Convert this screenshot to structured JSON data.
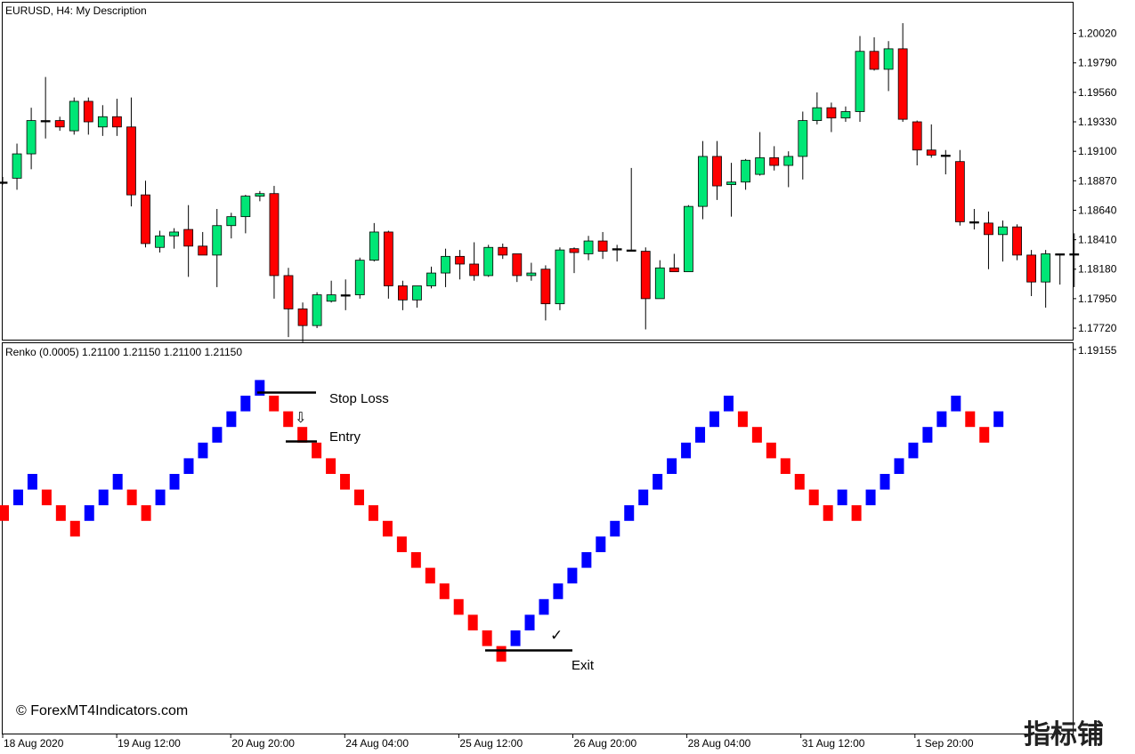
{
  "main_chart": {
    "title": "EURUSD, H4:  My Description",
    "y_ticks": [
      "1.20020",
      "1.19790",
      "1.19560",
      "1.19330",
      "1.19100",
      "1.18870",
      "1.18640",
      "1.18410",
      "1.18180",
      "1.17950",
      "1.17720"
    ]
  },
  "renko": {
    "title": "Renko (0.0005) 1.21100 1.21150 1.21100 1.21150",
    "y_tick": "1.19155"
  },
  "annotations": {
    "stop_loss": "Stop Loss",
    "entry": "Entry",
    "exit": "Exit",
    "down_arrow": "⇩",
    "check": "✓"
  },
  "x_ticks": [
    "18 Aug 2020",
    "19 Aug 12:00",
    "20 Aug 20:00",
    "24 Aug 04:00",
    "25 Aug 12:00",
    "26 Aug 20:00",
    "28 Aug 04:00",
    "31 Aug 12:00",
    "1 Sep 20:00"
  ],
  "copyright": "© ForexMT4Indicators.com",
  "watermark": "指标铺",
  "colors": {
    "bull": "#00e676",
    "bear": "#ff0000",
    "renko_up": "#0000ff",
    "renko_down": "#ff0000",
    "wick": "#000000"
  },
  "chart_data": [
    {
      "type": "candlestick",
      "title": "EURUSD, H4:  My Description",
      "ylim": [
        1.1763,
        1.2026
      ],
      "candles": [
        {
          "o": 1.1885,
          "h": 1.189,
          "l": 1.1884,
          "c": 1.1886
        },
        {
          "o": 1.1889,
          "h": 1.1916,
          "l": 1.188,
          "c": 1.1908
        },
        {
          "o": 1.1908,
          "h": 1.1944,
          "l": 1.1896,
          "c": 1.1934
        },
        {
          "o": 1.1934,
          "h": 1.1968,
          "l": 1.192,
          "c": 1.1934
        },
        {
          "o": 1.1934,
          "h": 1.1937,
          "l": 1.1926,
          "c": 1.1929
        },
        {
          "o": 1.1926,
          "h": 1.1952,
          "l": 1.1923,
          "c": 1.1949
        },
        {
          "o": 1.1949,
          "h": 1.1952,
          "l": 1.1923,
          "c": 1.1933
        },
        {
          "o": 1.1929,
          "h": 1.1946,
          "l": 1.1922,
          "c": 1.1937
        },
        {
          "o": 1.1937,
          "h": 1.1951,
          "l": 1.1922,
          "c": 1.1929
        },
        {
          "o": 1.1929,
          "h": 1.1952,
          "l": 1.1867,
          "c": 1.1876
        },
        {
          "o": 1.1876,
          "h": 1.1887,
          "l": 1.1835,
          "c": 1.1838
        },
        {
          "o": 1.1835,
          "h": 1.1848,
          "l": 1.1831,
          "c": 1.1844
        },
        {
          "o": 1.1844,
          "h": 1.185,
          "l": 1.1834,
          "c": 1.1847
        },
        {
          "o": 1.1849,
          "h": 1.1868,
          "l": 1.1812,
          "c": 1.1836
        },
        {
          "o": 1.1836,
          "h": 1.1847,
          "l": 1.1829,
          "c": 1.1829
        },
        {
          "o": 1.1829,
          "h": 1.1865,
          "l": 1.1804,
          "c": 1.1852
        },
        {
          "o": 1.1852,
          "h": 1.1862,
          "l": 1.1842,
          "c": 1.1859
        },
        {
          "o": 1.1859,
          "h": 1.1876,
          "l": 1.1846,
          "c": 1.1875
        },
        {
          "o": 1.1875,
          "h": 1.1879,
          "l": 1.1871,
          "c": 1.1877
        },
        {
          "o": 1.1877,
          "h": 1.1883,
          "l": 1.1795,
          "c": 1.1813
        },
        {
          "o": 1.1813,
          "h": 1.1819,
          "l": 1.1765,
          "c": 1.1787
        },
        {
          "o": 1.1787,
          "h": 1.1792,
          "l": 1.1761,
          "c": 1.1774
        },
        {
          "o": 1.1774,
          "h": 1.18,
          "l": 1.1772,
          "c": 1.1798
        },
        {
          "o": 1.1793,
          "h": 1.1809,
          "l": 1.1792,
          "c": 1.1798
        },
        {
          "o": 1.1798,
          "h": 1.181,
          "l": 1.1786,
          "c": 1.1798
        },
        {
          "o": 1.1798,
          "h": 1.1827,
          "l": 1.1795,
          "c": 1.1825
        },
        {
          "o": 1.1825,
          "h": 1.1854,
          "l": 1.1824,
          "c": 1.1847
        },
        {
          "o": 1.1847,
          "h": 1.1848,
          "l": 1.1795,
          "c": 1.1805
        },
        {
          "o": 1.1805,
          "h": 1.1809,
          "l": 1.1786,
          "c": 1.1794
        },
        {
          "o": 1.1794,
          "h": 1.1805,
          "l": 1.1788,
          "c": 1.1805
        },
        {
          "o": 1.1805,
          "h": 1.182,
          "l": 1.1803,
          "c": 1.1815
        },
        {
          "o": 1.1815,
          "h": 1.1834,
          "l": 1.1804,
          "c": 1.1828
        },
        {
          "o": 1.1828,
          "h": 1.1833,
          "l": 1.181,
          "c": 1.1822
        },
        {
          "o": 1.1822,
          "h": 1.1839,
          "l": 1.1809,
          "c": 1.1813
        },
        {
          "o": 1.1813,
          "h": 1.1837,
          "l": 1.1812,
          "c": 1.1835
        },
        {
          "o": 1.1835,
          "h": 1.1838,
          "l": 1.1826,
          "c": 1.1829
        },
        {
          "o": 1.183,
          "h": 1.183,
          "l": 1.1808,
          "c": 1.1813
        },
        {
          "o": 1.1813,
          "h": 1.1823,
          "l": 1.1809,
          "c": 1.1815
        },
        {
          "o": 1.1818,
          "h": 1.1821,
          "l": 1.1778,
          "c": 1.1791
        },
        {
          "o": 1.1791,
          "h": 1.1835,
          "l": 1.1786,
          "c": 1.1833
        },
        {
          "o": 1.1834,
          "h": 1.1835,
          "l": 1.1815,
          "c": 1.1831
        },
        {
          "o": 1.183,
          "h": 1.1844,
          "l": 1.1825,
          "c": 1.184
        },
        {
          "o": 1.184,
          "h": 1.1847,
          "l": 1.1826,
          "c": 1.1832
        },
        {
          "o": 1.1833,
          "h": 1.1837,
          "l": 1.1824,
          "c": 1.1834
        },
        {
          "o": 1.1833,
          "h": 1.1897,
          "l": 1.1832,
          "c": 1.1832
        },
        {
          "o": 1.1832,
          "h": 1.1835,
          "l": 1.1771,
          "c": 1.1795
        },
        {
          "o": 1.1795,
          "h": 1.1825,
          "l": 1.1795,
          "c": 1.1819
        },
        {
          "o": 1.1819,
          "h": 1.183,
          "l": 1.1816,
          "c": 1.1816
        },
        {
          "o": 1.1816,
          "h": 1.1868,
          "l": 1.1816,
          "c": 1.1867
        },
        {
          "o": 1.1867,
          "h": 1.1918,
          "l": 1.1857,
          "c": 1.1906
        },
        {
          "o": 1.1906,
          "h": 1.1918,
          "l": 1.1872,
          "c": 1.1883
        },
        {
          "o": 1.1884,
          "h": 1.1901,
          "l": 1.1859,
          "c": 1.1886
        },
        {
          "o": 1.1886,
          "h": 1.1904,
          "l": 1.188,
          "c": 1.1903
        },
        {
          "o": 1.1892,
          "h": 1.1925,
          "l": 1.1891,
          "c": 1.1905
        },
        {
          "o": 1.1905,
          "h": 1.1914,
          "l": 1.1895,
          "c": 1.1899
        },
        {
          "o": 1.1899,
          "h": 1.191,
          "l": 1.1882,
          "c": 1.1906
        },
        {
          "o": 1.1906,
          "h": 1.1941,
          "l": 1.1888,
          "c": 1.1934
        },
        {
          "o": 1.1934,
          "h": 1.1956,
          "l": 1.1931,
          "c": 1.1944
        },
        {
          "o": 1.1944,
          "h": 1.1948,
          "l": 1.1925,
          "c": 1.1936
        },
        {
          "o": 1.1936,
          "h": 1.1945,
          "l": 1.1933,
          "c": 1.1941
        },
        {
          "o": 1.1941,
          "h": 1.2,
          "l": 1.1933,
          "c": 1.1988
        },
        {
          "o": 1.1988,
          "h": 1.1999,
          "l": 1.1973,
          "c": 1.1974
        },
        {
          "o": 1.1974,
          "h": 1.1996,
          "l": 1.1957,
          "c": 1.199
        },
        {
          "o": 1.199,
          "h": 1.201,
          "l": 1.1933,
          "c": 1.1935
        },
        {
          "o": 1.1933,
          "h": 1.1934,
          "l": 1.1899,
          "c": 1.1911
        },
        {
          "o": 1.1911,
          "h": 1.1931,
          "l": 1.1905,
          "c": 1.1907
        },
        {
          "o": 1.1907,
          "h": 1.1911,
          "l": 1.1892,
          "c": 1.1907
        },
        {
          "o": 1.1902,
          "h": 1.1911,
          "l": 1.1852,
          "c": 1.1855
        },
        {
          "o": 1.1855,
          "h": 1.1865,
          "l": 1.1849,
          "c": 1.1854
        },
        {
          "o": 1.1854,
          "h": 1.1863,
          "l": 1.1818,
          "c": 1.1845
        },
        {
          "o": 1.1845,
          "h": 1.1856,
          "l": 1.1824,
          "c": 1.1851
        },
        {
          "o": 1.1851,
          "h": 1.1853,
          "l": 1.1825,
          "c": 1.1829
        },
        {
          "o": 1.1829,
          "h": 1.1833,
          "l": 1.1797,
          "c": 1.1808
        },
        {
          "o": 1.1808,
          "h": 1.1833,
          "l": 1.1788,
          "c": 1.183
        },
        {
          "o": 1.183,
          "h": 1.183,
          "l": 1.1806,
          "c": 1.183
        },
        {
          "o": 1.183,
          "h": 1.1846,
          "l": 1.1804,
          "c": 1.183
        }
      ]
    },
    {
      "type": "renko",
      "title": "Renko (0.0005) 1.21100 1.21150 1.21100 1.21150",
      "box_size": 0.0005,
      "top_reference": 1.19155,
      "bricks": [
        "down",
        "up",
        "up",
        "down",
        "down",
        "down",
        "up",
        "up",
        "up",
        "down",
        "down",
        "up",
        "up",
        "up",
        "up",
        "up",
        "up",
        "up",
        "up",
        "down",
        "down",
        "down",
        "down",
        "down",
        "down",
        "down",
        "down",
        "down",
        "down",
        "down",
        "down",
        "down",
        "down",
        "down",
        "down",
        "down",
        "up",
        "up",
        "up",
        "up",
        "up",
        "up",
        "up",
        "up",
        "up",
        "up",
        "up",
        "up",
        "up",
        "up",
        "up",
        "up",
        "down",
        "down",
        "down",
        "down",
        "down",
        "down",
        "down",
        "up",
        "down",
        "up",
        "up",
        "up",
        "up",
        "up",
        "up",
        "up",
        "down",
        "down",
        "up"
      ]
    }
  ]
}
